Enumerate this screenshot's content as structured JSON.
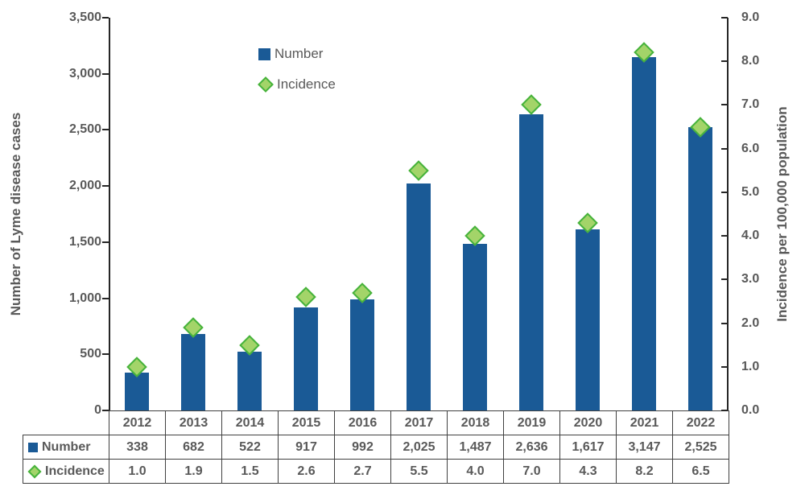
{
  "chart_data": {
    "type": "combo-bar-scatter",
    "categories": [
      "2012",
      "2013",
      "2014",
      "2015",
      "2016",
      "2017",
      "2018",
      "2019",
      "2020",
      "2021",
      "2022"
    ],
    "series": [
      {
        "name": "Number",
        "type": "bar",
        "axis": "left",
        "values": [
          338,
          682,
          522,
          917,
          992,
          2025,
          1487,
          2636,
          1617,
          3147,
          2525
        ]
      },
      {
        "name": "Incidence",
        "type": "scatter",
        "marker": "diamond",
        "axis": "right",
        "values": [
          1.0,
          1.9,
          1.5,
          2.6,
          2.7,
          5.5,
          4.0,
          7.0,
          4.3,
          8.2,
          6.5
        ]
      }
    ],
    "left_axis": {
      "title": "Number of Lyme disease cases",
      "min": 0,
      "max": 3500,
      "step": 500,
      "tick_labels": [
        "3,500",
        "3,000",
        "2,500",
        "2,000",
        "1,500",
        "1,000",
        "500",
        "0"
      ]
    },
    "right_axis": {
      "title": "Incidence per 100,000 population",
      "min": 0,
      "max": 9,
      "step": 1,
      "tick_labels": [
        "9.0",
        "8.0",
        "7.0",
        "6.0",
        "5.0",
        "4.0",
        "3.0",
        "2.0",
        "1.0",
        "0.0"
      ]
    },
    "grid": false,
    "legend_position": "top-left-inside"
  },
  "legend": {
    "number_label": "Number",
    "incidence_label": "Incidence"
  },
  "table": {
    "year_headers": [
      "2012",
      "2013",
      "2014",
      "2015",
      "2016",
      "2017",
      "2018",
      "2019",
      "2020",
      "2021",
      "2022"
    ],
    "rows": [
      {
        "label": "Number",
        "marker": "square",
        "values": [
          "338",
          "682",
          "522",
          "917",
          "992",
          "2,025",
          "1,487",
          "2,636",
          "1,617",
          "3,147",
          "2,525"
        ]
      },
      {
        "label": "Incidence",
        "marker": "diamond",
        "values": [
          "1.0",
          "1.9",
          "1.5",
          "2.6",
          "2.7",
          "5.5",
          "4.0",
          "7.0",
          "4.3",
          "8.2",
          "6.5"
        ]
      }
    ]
  },
  "colors": {
    "bar": "#1A5A96",
    "diamond_fill": "#A3D469",
    "diamond_border": "#46B33C",
    "axis_line": "#262626",
    "text": "#595959",
    "table_border": "#404040"
  }
}
